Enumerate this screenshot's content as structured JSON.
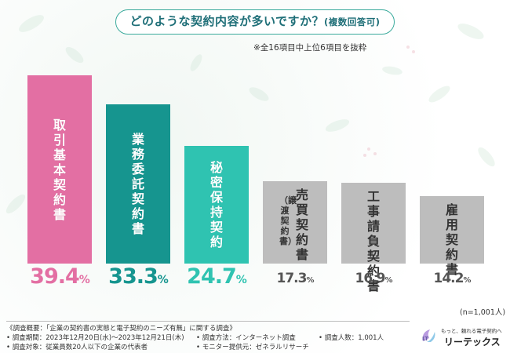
{
  "title": {
    "main": "どのような契約内容が多いですか？",
    "suffix": "(複数回答可)"
  },
  "note": "※全16項目中上位6項目を抜粋",
  "sample_size": "(n=1,001人)",
  "colors": {
    "pink": "#e36fa3",
    "teal_dark": "#16958f",
    "teal_light": "#2fc3b1",
    "gray": "#bdbdbd",
    "title_text": "#1f6f78"
  },
  "chart_data": {
    "type": "bar",
    "title": "どのような契約内容が多いですか？(複数回答可)",
    "unit": "%",
    "ylim": [
      0,
      39.4
    ],
    "categories": [
      "取引基本契約書",
      "業務委託契約書",
      "秘密保持契約",
      "売買契約書",
      "工事請負契約書",
      "雇用契約書"
    ],
    "category_notes": [
      "",
      "",
      "",
      "（譲渡契約書）",
      "",
      ""
    ],
    "values": [
      39.4,
      33.3,
      24.7,
      17.3,
      16.9,
      14.2
    ],
    "value_labels": [
      {
        "num": "39.",
        "dec": "4",
        "unit": "%"
      },
      {
        "num": "33.",
        "dec": "3",
        "unit": "%"
      },
      {
        "num": "24.",
        "dec": "7",
        "unit": "%"
      },
      {
        "num": "17.",
        "dec": "3",
        "unit": "%"
      },
      {
        "num": "16.",
        "dec": "9",
        "unit": "%"
      },
      {
        "num": "14.",
        "dec": "2",
        "unit": "%"
      }
    ]
  },
  "footer": {
    "overview": "《調査概要：「企業の契約書の実態と電子契約のニーズ有無」に関する調査》",
    "period": "• 調査期間：2023年12月20日(水)～2023年12月21日(木)",
    "method": "• 調査方法：インターネット調査",
    "respondents": "• 調査人数：1,001人",
    "target": "• 調査対象：従業員数20人以下の企業の代表者",
    "provider": "• モニター提供元：ゼネラルリサーチ"
  },
  "logo": {
    "mark": "LT",
    "tagline": "もっと、頼れる電子契約へ",
    "name": "リーテックス"
  }
}
